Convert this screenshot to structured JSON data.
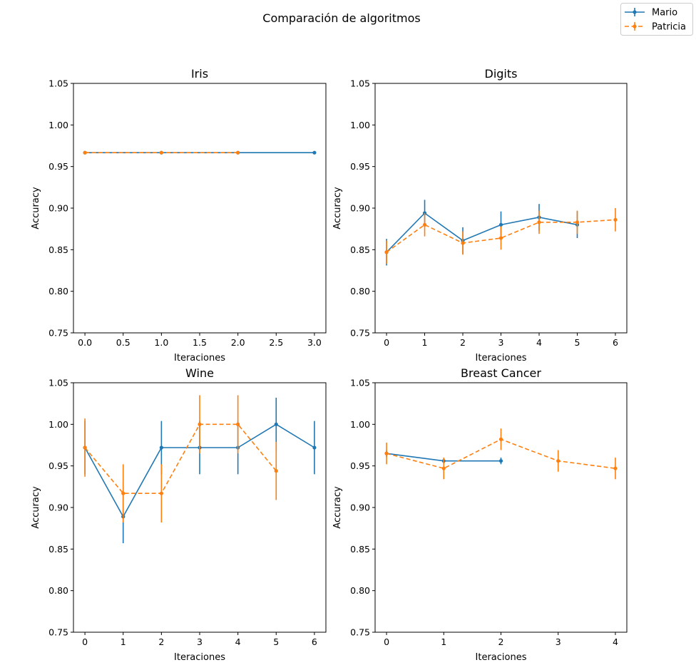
{
  "figure": {
    "suptitle": "Comparación de algoritmos"
  },
  "legend": {
    "placement": "top-right",
    "entries": [
      {
        "name": "Mario",
        "color": "#1f77b4",
        "linestyle": "solid"
      },
      {
        "name": "Patricia",
        "color": "#ff7f0e",
        "linestyle": "dashed"
      }
    ]
  },
  "chart_data": [
    {
      "type": "line",
      "title": "Iris",
      "xlabel": "Iteraciones",
      "ylabel": "Accuracy",
      "xlim": [
        -0.15,
        3.15
      ],
      "ylim": [
        0.75,
        1.05
      ],
      "xticks": [
        0.0,
        0.5,
        1.0,
        1.5,
        2.0,
        2.5,
        3.0
      ],
      "xtick_labels": [
        "0.0",
        "0.5",
        "1.0",
        "1.5",
        "2.0",
        "2.5",
        "3.0"
      ],
      "yticks": [
        0.75,
        0.8,
        0.85,
        0.9,
        0.95,
        1.0,
        1.05
      ],
      "ytick_labels": [
        "0.75",
        "0.80",
        "0.85",
        "0.90",
        "0.95",
        "1.00",
        "1.05"
      ],
      "series": [
        {
          "name": "Mario",
          "x": [
            0,
            1,
            2,
            3
          ],
          "y": [
            0.9667,
            0.9667,
            0.9667,
            0.9667
          ],
          "err": [
            0,
            0,
            0,
            0
          ]
        },
        {
          "name": "Patricia",
          "x": [
            0,
            1,
            2
          ],
          "y": [
            0.9667,
            0.9667,
            0.9667
          ],
          "err": [
            0,
            0,
            0
          ]
        }
      ]
    },
    {
      "type": "line",
      "title": "Digits",
      "xlabel": "Iteraciones",
      "ylabel": "Accuracy",
      "xlim": [
        -0.3,
        6.3
      ],
      "ylim": [
        0.75,
        1.05
      ],
      "xticks": [
        0,
        1,
        2,
        3,
        4,
        5,
        6
      ],
      "xtick_labels": [
        "0",
        "1",
        "2",
        "3",
        "4",
        "5",
        "6"
      ],
      "yticks": [
        0.75,
        0.8,
        0.85,
        0.9,
        0.95,
        1.0,
        1.05
      ],
      "ytick_labels": [
        "0.75",
        "0.80",
        "0.85",
        "0.90",
        "0.95",
        "1.00",
        "1.05"
      ],
      "series": [
        {
          "name": "Mario",
          "x": [
            0,
            1,
            2,
            3,
            4,
            5
          ],
          "y": [
            0.847,
            0.894,
            0.861,
            0.88,
            0.889,
            0.88
          ],
          "err": [
            0.016,
            0.016,
            0.016,
            0.016,
            0.016,
            0.016
          ]
        },
        {
          "name": "Patricia",
          "x": [
            0,
            1,
            2,
            3,
            4,
            5,
            6
          ],
          "y": [
            0.847,
            0.88,
            0.858,
            0.864,
            0.883,
            0.883,
            0.886
          ],
          "err": [
            0.014,
            0.014,
            0.014,
            0.014,
            0.014,
            0.014,
            0.014
          ]
        }
      ]
    },
    {
      "type": "line",
      "title": "Wine",
      "xlabel": "Iteraciones",
      "ylabel": "Accuracy",
      "xlim": [
        -0.3,
        6.3
      ],
      "ylim": [
        0.75,
        1.05
      ],
      "xticks": [
        0,
        1,
        2,
        3,
        4,
        5,
        6
      ],
      "xtick_labels": [
        "0",
        "1",
        "2",
        "3",
        "4",
        "5",
        "6"
      ],
      "yticks": [
        0.75,
        0.8,
        0.85,
        0.9,
        0.95,
        1.0,
        1.05
      ],
      "ytick_labels": [
        "0.75",
        "0.80",
        "0.85",
        "0.90",
        "0.95",
        "1.00",
        "1.05"
      ],
      "series": [
        {
          "name": "Mario",
          "x": [
            0,
            1,
            2,
            3,
            4,
            5,
            6
          ],
          "y": [
            0.972,
            0.889,
            0.972,
            0.972,
            0.972,
            1.0,
            0.972
          ],
          "err": [
            0.032,
            0.032,
            0.032,
            0.032,
            0.032,
            0.032,
            0.032
          ]
        },
        {
          "name": "Patricia",
          "x": [
            0,
            1,
            2,
            3,
            4,
            5
          ],
          "y": [
            0.972,
            0.917,
            0.917,
            1.0,
            1.0,
            0.944
          ],
          "err": [
            0.035,
            0.035,
            0.035,
            0.035,
            0.035,
            0.035
          ]
        }
      ]
    },
    {
      "type": "line",
      "title": "Breast Cancer",
      "xlabel": "Iteraciones",
      "ylabel": "Accuracy",
      "xlim": [
        -0.2,
        4.2
      ],
      "ylim": [
        0.75,
        1.05
      ],
      "xticks": [
        0,
        1,
        2,
        3,
        4
      ],
      "xtick_labels": [
        "0",
        "1",
        "2",
        "3",
        "4"
      ],
      "yticks": [
        0.75,
        0.8,
        0.85,
        0.9,
        0.95,
        1.0,
        1.05
      ],
      "ytick_labels": [
        "0.75",
        "0.80",
        "0.85",
        "0.90",
        "0.95",
        "1.00",
        "1.05"
      ],
      "series": [
        {
          "name": "Mario",
          "x": [
            0,
            1,
            2
          ],
          "y": [
            0.965,
            0.956,
            0.956
          ],
          "err": [
            0.004,
            0.004,
            0.004
          ]
        },
        {
          "name": "Patricia",
          "x": [
            0,
            1,
            2,
            3,
            4
          ],
          "y": [
            0.965,
            0.947,
            0.982,
            0.956,
            0.947
          ],
          "err": [
            0.013,
            0.013,
            0.013,
            0.013,
            0.013
          ]
        }
      ]
    }
  ]
}
